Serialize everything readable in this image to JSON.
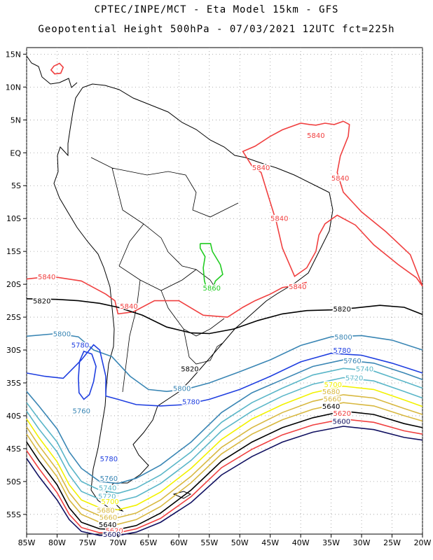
{
  "chart_data": {
    "type": "line",
    "title": "CPTEC/INPE/MCT -  Eta Model 15km - GFS",
    "subtitle": "Geopotential Height 500hPa - 07/03/2021 12UTC fct=225h",
    "xlabel": "",
    "ylabel": "",
    "x_ticks": [
      "85W",
      "80W",
      "75W",
      "70W",
      "65W",
      "60W",
      "55W",
      "50W",
      "45W",
      "40W",
      "35W",
      "30W",
      "25W",
      "20W"
    ],
    "y_ticks": [
      "15N",
      "10N",
      "5N",
      "EQ",
      "5S",
      "10S",
      "15S",
      "20S",
      "25S",
      "30S",
      "35S",
      "40S",
      "45S",
      "50S",
      "55S"
    ],
    "xlim": [
      -85,
      -20
    ],
    "ylim": [
      -58,
      16
    ],
    "grid": true,
    "series": [
      {
        "name": "5860",
        "color": "#22cc22",
        "x": [
          -56.5,
          -54.8,
          -54.5,
          -53.2,
          -52.8,
          -54.0,
          -54.6,
          -55.4,
          -55.8,
          -56.0,
          -55.7,
          -56.5,
          -56.5
        ],
        "y": [
          -13.8,
          -13.8,
          -15.0,
          -17.0,
          -18.5,
          -19.5,
          -21.0,
          -20.8,
          -19.5,
          -17.5,
          -15.8,
          -14.5,
          -13.8
        ],
        "labels": [
          {
            "text": "5860",
            "x": -54.6,
            "y": -20.5
          }
        ]
      },
      {
        "name": "5840",
        "color": "#f04040",
        "x": [
          -85,
          -81,
          -76,
          -72,
          -70.5,
          -70,
          -67.5,
          -64,
          -60,
          -56,
          -52,
          -49.5,
          -47.5,
          -45,
          -43,
          -41,
          -39
        ],
        "y": [
          -19.2,
          -18.8,
          -19.5,
          -21.5,
          -22.5,
          -24.5,
          -24.2,
          -22.5,
          -22.5,
          -24.7,
          -25.0,
          -23.5,
          -22.5,
          -21.5,
          -20.5,
          -20.2,
          -19.7
        ],
        "labels": [
          {
            "text": "5840",
            "x": -81.7,
            "y": -18.8
          },
          {
            "text": "5840",
            "x": -68.2,
            "y": -23.3
          },
          {
            "text": "5840",
            "x": -40.5,
            "y": -20.3
          },
          {
            "text": "5840",
            "x": -43.5,
            "y": -9.9
          },
          {
            "text": "5840",
            "x": -46.5,
            "y": -2.2
          },
          {
            "text": "5840",
            "x": -37.5,
            "y": 2.7
          },
          {
            "text": "5840",
            "x": -33.5,
            "y": -3.8
          }
        ]
      },
      {
        "name": "5820",
        "color": "#000000",
        "x": [
          -85,
          -80,
          -76.5,
          -73,
          -70,
          -66,
          -62,
          -58,
          -55,
          -51,
          -47,
          -43,
          -39,
          -35,
          -31,
          -27,
          -23,
          -20
        ],
        "y": [
          -22.2,
          -22.3,
          -22.5,
          -22.9,
          -23.5,
          -24.7,
          -26.5,
          -27.4,
          -27.5,
          -26.8,
          -25.5,
          -24.5,
          -24.0,
          -23.9,
          -23.6,
          -23.2,
          -23.5,
          -24.6
        ],
        "labels": [
          {
            "text": "5820",
            "x": -82.5,
            "y": -22.5
          },
          {
            "text": "5820",
            "x": -33.2,
            "y": -23.7
          },
          {
            "text": "5820",
            "x": -58.2,
            "y": -32.8
          }
        ]
      },
      {
        "name": "5800",
        "color": "#3a86b4",
        "x": [
          -85,
          -80,
          -76.5,
          -74,
          -71,
          -68,
          -65,
          -62,
          -59,
          -55,
          -50,
          -45,
          -40,
          -35,
          -30,
          -25,
          -20
        ],
        "y": [
          -27.9,
          -27.5,
          -28.0,
          -30.0,
          -31.0,
          -34.0,
          -36.0,
          -36.3,
          -36.0,
          -35.0,
          -33.3,
          -31.5,
          -29.3,
          -28.0,
          -27.8,
          -28.5,
          -30.0
        ],
        "labels": [
          {
            "text": "5800",
            "x": -79.2,
            "y": -27.5
          },
          {
            "text": "5800",
            "x": -59.5,
            "y": -35.8
          },
          {
            "text": "5800",
            "x": -33.0,
            "y": -28.0
          }
        ]
      },
      {
        "name": "5780",
        "color": "#1f3fe0",
        "x": [
          -85,
          -82,
          -79,
          -76,
          -74,
          -73,
          -72,
          -72,
          -70,
          -67,
          -63,
          -59,
          -55,
          -50,
          -45,
          -40,
          -35,
          -30,
          -25,
          -20
        ],
        "y": [
          -33.5,
          -34.0,
          -34.3,
          -31.5,
          -29.2,
          -30.0,
          -34.0,
          -37.0,
          -37.5,
          -38.3,
          -38.5,
          -38.3,
          -37.5,
          -36.0,
          -34.0,
          -31.8,
          -30.5,
          -30.8,
          -32.0,
          -33.5
        ],
        "labels": [
          {
            "text": "5780",
            "x": -76.2,
            "y": -29.2
          },
          {
            "text": "5780",
            "x": -58.0,
            "y": -37.8
          },
          {
            "text": "5780",
            "x": -33.2,
            "y": -30.0
          },
          {
            "text": "5780",
            "x": -71.5,
            "y": -46.5
          }
        ]
      },
      {
        "name": "5760",
        "color": "#3a86b4",
        "x": [
          -85,
          -83,
          -80,
          -78,
          -76,
          -73,
          -70,
          -67,
          -63,
          -58,
          -53,
          -48,
          -43,
          -38,
          -33,
          -28,
          -23,
          -20
        ],
        "y": [
          -36.3,
          -38.5,
          -42.0,
          -45.5,
          -48.0,
          -50.0,
          -50.3,
          -49.5,
          -47.5,
          -44.0,
          -39.5,
          -36.5,
          -34.5,
          -32.5,
          -31.5,
          -32.0,
          -33.5,
          -34.5
        ],
        "labels": [
          {
            "text": "5760",
            "x": -71.5,
            "y": -49.5
          },
          {
            "text": "5760",
            "x": -31.5,
            "y": -31.6
          },
          {
            "text": "5760",
            "x": -76.0,
            "y": -39.2
          }
        ]
      },
      {
        "name": "5740",
        "color": "#5ab6c8",
        "x": [
          -85,
          -83,
          -80,
          -78,
          -76,
          -73,
          -70,
          -67,
          -63,
          -58,
          -53,
          -48,
          -43,
          -38,
          -33,
          -28,
          -23,
          -20
        ],
        "y": [
          -38.0,
          -40.5,
          -44.0,
          -47.5,
          -50.0,
          -51.3,
          -51.8,
          -51.0,
          -49.0,
          -45.5,
          -41.0,
          -38.0,
          -35.8,
          -33.8,
          -32.8,
          -33.2,
          -34.8,
          -35.8
        ],
        "labels": [
          {
            "text": "5740",
            "x": -71.7,
            "y": -50.9
          },
          {
            "text": "5740",
            "x": -29.5,
            "y": -32.8
          }
        ]
      },
      {
        "name": "5720",
        "color": "#5ab6c8",
        "x": [
          -85,
          -83,
          -80,
          -78,
          -76,
          -73,
          -70,
          -67,
          -63,
          -58,
          -53,
          -48,
          -43,
          -38,
          -33,
          -28,
          -23,
          -20
        ],
        "y": [
          -39.3,
          -42.0,
          -45.5,
          -49.0,
          -51.5,
          -52.7,
          -53.0,
          -52.3,
          -50.3,
          -46.8,
          -42.3,
          -39.3,
          -37.0,
          -35.2,
          -34.2,
          -34.7,
          -36.3,
          -37.3
        ],
        "labels": [
          {
            "text": "5720",
            "x": -71.8,
            "y": -52.2
          },
          {
            "text": "5720",
            "x": -31.2,
            "y": -34.2
          }
        ]
      },
      {
        "name": "5700",
        "color": "#f2f200",
        "x": [
          -85,
          -83,
          -80,
          -78,
          -76,
          -73,
          -70,
          -67,
          -63,
          -58,
          -53,
          -48,
          -43,
          -38,
          -33,
          -28,
          -23,
          -20
        ],
        "y": [
          -40.5,
          -43.3,
          -47.0,
          -50.5,
          -52.8,
          -54.0,
          -54.3,
          -53.6,
          -51.6,
          -48.0,
          -43.6,
          -40.5,
          -38.3,
          -36.5,
          -35.5,
          -36.0,
          -37.6,
          -38.6
        ],
        "labels": [
          {
            "text": "5700",
            "x": -71.3,
            "y": -53.0
          },
          {
            "text": "5700",
            "x": -34.7,
            "y": -35.2
          }
        ]
      },
      {
        "name": "5680",
        "color": "#d8b840",
        "x": [
          -85,
          -83,
          -80,
          -78,
          -76,
          -73,
          -70,
          -67,
          -63,
          -58,
          -53,
          -48,
          -43,
          -38,
          -33,
          -28,
          -23,
          -20
        ],
        "y": [
          -41.7,
          -44.5,
          -48.2,
          -51.7,
          -54.0,
          -55.2,
          -55.5,
          -54.8,
          -52.8,
          -49.2,
          -44.8,
          -41.8,
          -39.5,
          -37.8,
          -36.8,
          -37.3,
          -38.9,
          -39.8
        ],
        "labels": [
          {
            "text": "5680",
            "x": -72.0,
            "y": -54.3
          },
          {
            "text": "5680",
            "x": -35.0,
            "y": -36.3
          }
        ]
      },
      {
        "name": "5660",
        "color": "#d8b840",
        "x": [
          -85,
          -83,
          -80,
          -78,
          -76,
          -73,
          -70,
          -67,
          -63,
          -58,
          -53,
          -48,
          -43,
          -38,
          -33,
          -28,
          -23,
          -20
        ],
        "y": [
          -42.8,
          -45.6,
          -49.3,
          -52.8,
          -55.0,
          -56.2,
          -56.5,
          -55.8,
          -53.8,
          -50.2,
          -45.8,
          -42.8,
          -40.6,
          -39.0,
          -38.0,
          -38.5,
          -40.0,
          -40.8
        ],
        "labels": [
          {
            "text": "5660",
            "x": -71.6,
            "y": -55.4
          },
          {
            "text": "5660",
            "x": -34.8,
            "y": -37.4
          }
        ]
      },
      {
        "name": "5640",
        "color": "#000000",
        "x": [
          -85,
          -83,
          -80,
          -78,
          -76,
          -73,
          -70,
          -67,
          -63,
          -58,
          -53,
          -48,
          -43,
          -38,
          -33,
          -28,
          -23,
          -20
        ],
        "y": [
          -44.0,
          -46.8,
          -50.5,
          -54.0,
          -56.2,
          -57.2,
          -57.3,
          -56.7,
          -54.8,
          -51.3,
          -46.9,
          -44.0,
          -41.8,
          -40.3,
          -39.3,
          -39.8,
          -41.2,
          -41.8
        ],
        "labels": [
          {
            "text": "5640",
            "x": -71.7,
            "y": -56.5
          },
          {
            "text": "5640",
            "x": -35.0,
            "y": -38.5
          }
        ]
      },
      {
        "name": "5620",
        "color": "#f04040",
        "x": [
          -85,
          -83,
          -80,
          -78,
          -76,
          -73,
          -70,
          -67,
          -63,
          -58,
          -53,
          -48,
          -43,
          -38,
          -33,
          -28,
          -23,
          -20
        ],
        "y": [
          -45.3,
          -48.0,
          -51.7,
          -55.0,
          -57.0,
          -57.8,
          -57.8,
          -57.2,
          -55.6,
          -52.3,
          -47.9,
          -45.1,
          -42.9,
          -41.4,
          -40.5,
          -41.0,
          -42.3,
          -42.8
        ],
        "labels": [
          {
            "text": "5620",
            "x": -70.6,
            "y": -57.4
          },
          {
            "text": "5620",
            "x": -33.2,
            "y": -39.6
          }
        ]
      },
      {
        "name": "5600",
        "color": "#101060",
        "x": [
          -85,
          -83,
          -80,
          -78,
          -76,
          -73,
          -70,
          -67,
          -63,
          -58,
          -53,
          -48,
          -43,
          -38,
          -33,
          -28,
          -23,
          -20
        ],
        "y": [
          -46.5,
          -49.2,
          -52.8,
          -55.8,
          -57.6,
          -58.2,
          -58.2,
          -57.7,
          -56.2,
          -53.2,
          -49.0,
          -46.2,
          -44.0,
          -42.5,
          -41.6,
          -42.1,
          -43.3,
          -43.7
        ],
        "labels": [
          {
            "text": "5600",
            "x": -71.0,
            "y": -58.0
          },
          {
            "text": "5600",
            "x": -33.3,
            "y": -40.8
          }
        ]
      }
    ],
    "closed_contours": [
      {
        "name": "5760",
        "color": "#1f3fe0",
        "x": [
          -75.6,
          -74.3,
          -73.6,
          -74.0,
          -74.7,
          -75.6,
          -76.4,
          -76.5,
          -76.3,
          -75.6
        ],
        "y": [
          -30.2,
          -30.6,
          -32.5,
          -34.8,
          -36.8,
          -37.5,
          -36.5,
          -34.3,
          -31.7,
          -30.2
        ]
      },
      {
        "name": "5840",
        "color": "#f04040",
        "x": [
          -49.5,
          -47.5,
          -45,
          -43,
          -40,
          -38.5,
          -37.5,
          -36,
          -34.5,
          -33,
          -32,
          -32.2,
          -33.5,
          -34,
          -33,
          -30,
          -26,
          -22,
          -20,
          -21,
          -24,
          -28,
          -31,
          -34,
          -36,
          -37,
          -37.5,
          -39,
          -41,
          -43,
          -44,
          -45.5,
          -46.5,
          -48,
          -49.5
        ],
        "y": [
          0.2,
          1.0,
          2.5,
          3.5,
          4.5,
          4.3,
          4.2,
          4.5,
          4.3,
          4.8,
          4.3,
          2.5,
          -0.5,
          -3.0,
          -6.0,
          -9.0,
          -12.0,
          -15.5,
          -20.3,
          -19.0,
          -17.0,
          -14.0,
          -11.0,
          -9.5,
          -10.8,
          -12.5,
          -15.0,
          -17.5,
          -18.8,
          -14.5,
          -10.5,
          -6.0,
          -3.0,
          -2.0,
          0.2
        ]
      },
      {
        "name": "5840",
        "color": "#f04040",
        "x": [
          -80.5,
          -79.6,
          -79.0,
          -79.4,
          -80.4,
          -81.0,
          -80.5
        ],
        "y": [
          13.2,
          13.6,
          13.0,
          12.1,
          12.0,
          12.6,
          13.2
        ]
      }
    ],
    "coastline_note": "South America coastline and country borders shown in black"
  }
}
